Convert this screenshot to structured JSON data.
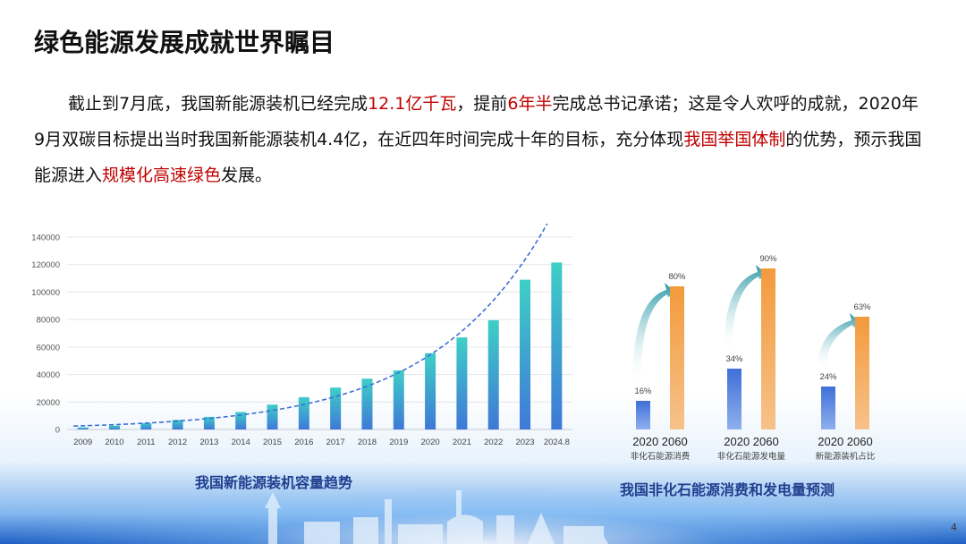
{
  "title": "绿色能源发展成就世界瞩目",
  "paragraph": {
    "p1": "截止到7月底，我国新能源装机已经完成",
    "h1": "12.1亿千瓦",
    "p2": "，提前",
    "h2": "6年半",
    "p3": "完成总书记承诺；这是令人欢呼的成就，2020年9月双碳目标提出当时我国新能源装机4.4亿，在近四年时间完成十年的目标，充分体现",
    "h3": "我国举国体制",
    "p4": "的优势，预示我国能源进入",
    "h4": "规模化高速绿色",
    "p5": "发展。"
  },
  "chart_data": [
    {
      "type": "bar",
      "title": "我国新能源装机容量趋势",
      "categories": [
        "2009",
        "2010",
        "2011",
        "2012",
        "2013",
        "2014",
        "2015",
        "2016",
        "2017",
        "2018",
        "2019",
        "2020",
        "2021",
        "2022",
        "2023",
        "2024.8"
      ],
      "values": [
        1500,
        2800,
        4700,
        7000,
        9200,
        12700,
        18100,
        23500,
        30500,
        37000,
        43000,
        55500,
        67000,
        79500,
        109000,
        121500
      ],
      "ylim": [
        0,
        140000
      ],
      "yticks": [
        0,
        20000,
        40000,
        60000,
        80000,
        100000,
        120000,
        140000
      ],
      "grid": true,
      "trendline": true,
      "colors": {
        "bar_top": "#3ecfc6",
        "bar_bottom": "#3f78d8",
        "trend": "#3d6fd6"
      }
    },
    {
      "type": "bar",
      "title": "我国非化石能源消费和发电量预测",
      "groups": [
        {
          "label": "非化石能源消费",
          "years": [
            "2020",
            "2060"
          ],
          "values": [
            16,
            80
          ],
          "value_labels": [
            "16%",
            "80%"
          ]
        },
        {
          "label": "非化石能源发电量",
          "years": [
            "2020",
            "2060"
          ],
          "values": [
            34,
            90
          ],
          "value_labels": [
            "34%",
            "90%"
          ]
        },
        {
          "label": "新能源装机占比",
          "years": [
            "2020",
            "2060"
          ],
          "values": [
            24,
            63
          ],
          "value_labels": [
            "24%",
            "63%"
          ]
        }
      ],
      "colors": {
        "2020": "#3f6fd8",
        "2060": "#f08a2a",
        "arrow": "#2e9aa8"
      }
    }
  ],
  "page_number": "4"
}
